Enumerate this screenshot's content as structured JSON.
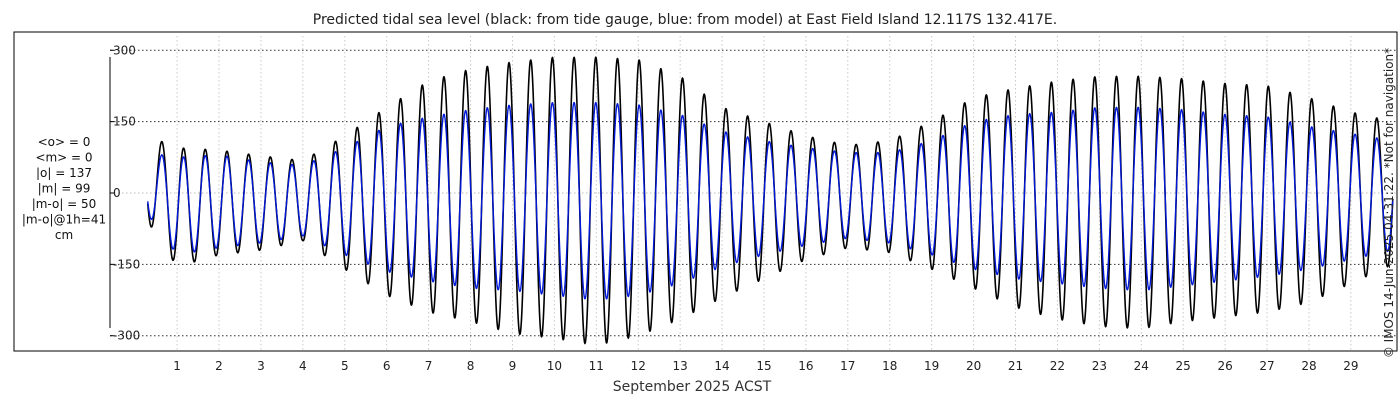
{
  "chart_data": {
    "type": "line",
    "title": "Predicted tidal sea level (black: from tide gauge, blue: from model) at East Field Island 12.117S 132.417E.",
    "xlabel": "September 2025 ACST",
    "ylabel": "",
    "ylim": [
      -330,
      330
    ],
    "xlim": [
      -0.6,
      30.1
    ],
    "yticks": [
      -300,
      -150,
      0,
      150,
      300
    ],
    "ytick_labels": [
      "-300",
      "-150",
      "0",
      "150",
      "300"
    ],
    "xticks": [
      1,
      2,
      3,
      4,
      5,
      6,
      7,
      8,
      9,
      10,
      11,
      12,
      13,
      14,
      15,
      16,
      17,
      18,
      19,
      20,
      21,
      22,
      23,
      24,
      25,
      26,
      27,
      28,
      29
    ],
    "xtick_labels": [
      "1",
      "2",
      "3",
      "4",
      "5",
      "6",
      "7",
      "8",
      "9",
      "10",
      "11",
      "12",
      "13",
      "14",
      "15",
      "16",
      "17",
      "18",
      "19",
      "20",
      "21",
      "22",
      "23",
      "24",
      "25",
      "26",
      "27",
      "28",
      "29"
    ],
    "grid": true,
    "x_start": 0.3,
    "x_end": 30.0,
    "series": [
      {
        "name": "from tide gauge",
        "color": "#000000",
        "envelope": {
          "days": [
            0.3,
            1,
            2,
            3,
            4,
            5,
            6,
            7,
            8,
            9,
            10,
            11,
            12,
            13,
            14,
            15,
            16,
            17,
            18,
            19,
            20,
            21,
            22,
            23,
            24,
            25,
            26,
            27,
            28,
            29,
            30
          ],
          "highs": [
            120,
            95,
            90,
            78,
            68,
            120,
            180,
            235,
            260,
            275,
            285,
            285,
            280,
            245,
            180,
            150,
            120,
            100,
            110,
            150,
            200,
            220,
            235,
            245,
            245,
            240,
            230,
            225,
            200,
            170,
            150
          ],
          "lows": [
            -60,
            -155,
            -130,
            -120,
            -100,
            -160,
            -215,
            -250,
            -270,
            -295,
            -305,
            -320,
            -300,
            -265,
            -220,
            -180,
            -140,
            -115,
            -125,
            -160,
            -200,
            -240,
            -265,
            -280,
            -285,
            -270,
            -260,
            -250,
            -230,
            -190,
            -150
          ]
        }
      },
      {
        "name": "from model",
        "color": "#0018d8",
        "envelope": {
          "days": [
            0.3,
            1,
            2,
            3,
            4,
            5,
            6,
            7,
            8,
            9,
            10,
            11,
            12,
            13,
            14,
            15,
            16,
            17,
            18,
            19,
            20,
            21,
            22,
            23,
            24,
            25,
            26,
            27,
            28,
            29,
            30
          ],
          "highs": [
            85,
            75,
            80,
            65,
            58,
            95,
            140,
            160,
            175,
            185,
            190,
            190,
            185,
            165,
            130,
            110,
            95,
            85,
            85,
            110,
            150,
            165,
            170,
            180,
            180,
            175,
            165,
            160,
            140,
            125,
            110
          ],
          "lows": [
            -45,
            -130,
            -115,
            -105,
            -90,
            -130,
            -165,
            -185,
            -200,
            -205,
            -215,
            -225,
            -215,
            -190,
            -155,
            -130,
            -110,
            -95,
            -105,
            -130,
            -160,
            -180,
            -190,
            -200,
            -205,
            -195,
            -185,
            -175,
            -160,
            -140,
            -120
          ]
        }
      }
    ]
  },
  "stats": {
    "lines": [
      "<o> = 0",
      "<m> = 0",
      "|o| = 137",
      "|m| = 99",
      "|m-o| = 50",
      "|m-o|@1h=41",
      "cm"
    ]
  },
  "credit": "© IMOS 14-Jun-2025 04:31:22. *Not for navigation*"
}
